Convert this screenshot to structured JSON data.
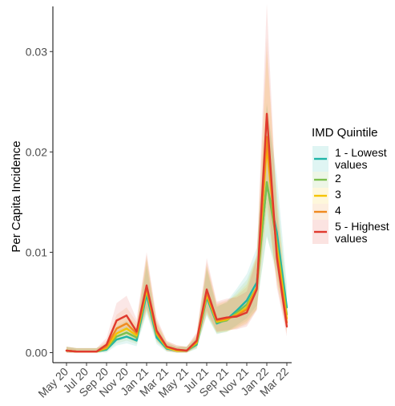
{
  "chart_data": {
    "type": "line",
    "ylabel": "Per Capita Incidence",
    "xlabel": "",
    "ylim": [
      -0.001,
      0.0345
    ],
    "y_ticks": [
      "0.00",
      "0.01",
      "0.02",
      "0.03"
    ],
    "x_ticks": [
      "May 20",
      "Jul 20",
      "Sep 20",
      "Nov 20",
      "Jan 21",
      "Mar 21",
      "May 21",
      "Jul 21",
      "Sep 21",
      "Nov 21",
      "Jan 22",
      "Mar 22"
    ],
    "x_range_months": [
      "2020-05",
      "2022-03"
    ],
    "grid": false,
    "legend": {
      "title": "IMD Quintile",
      "placement": "right"
    },
    "x": [
      "2020-05",
      "2020-06",
      "2020-07",
      "2020-08",
      "2020-09",
      "2020-10",
      "2020-11",
      "2020-12",
      "2021-01",
      "2021-02",
      "2021-03",
      "2021-04",
      "2021-05",
      "2021-06",
      "2021-07",
      "2021-08",
      "2021-09",
      "2021-10",
      "2021-11",
      "2021-12",
      "2022-01",
      "2022-02",
      "2022-03"
    ],
    "series": [
      {
        "name": "1 - Lowest values",
        "color": "#1fb5a8",
        "values": [
          0.0002,
          0.0001,
          0.0001,
          0.0001,
          0.0003,
          0.0013,
          0.0016,
          0.0012,
          0.0058,
          0.0015,
          0.0004,
          0.0002,
          0.0002,
          0.0008,
          0.0055,
          0.0029,
          0.0033,
          0.0042,
          0.0052,
          0.007,
          0.0168,
          0.012,
          0.0045
        ]
      },
      {
        "name": "2",
        "color": "#7cc04e",
        "values": [
          0.0002,
          0.0001,
          0.0001,
          0.0001,
          0.0004,
          0.0016,
          0.002,
          0.0015,
          0.0062,
          0.0018,
          0.0005,
          0.0002,
          0.0002,
          0.0009,
          0.0057,
          0.003,
          0.0032,
          0.004,
          0.0048,
          0.0065,
          0.017,
          0.011,
          0.0038
        ]
      },
      {
        "name": "3",
        "color": "#f5c400",
        "values": [
          0.0002,
          0.0001,
          0.0001,
          0.0001,
          0.0005,
          0.0019,
          0.0024,
          0.0017,
          0.0063,
          0.0019,
          0.0005,
          0.0002,
          0.0002,
          0.001,
          0.0058,
          0.0031,
          0.0033,
          0.0038,
          0.0045,
          0.0065,
          0.0205,
          0.0105,
          0.0034
        ]
      },
      {
        "name": "4",
        "color": "#f08a1f",
        "values": [
          0.0002,
          0.0001,
          0.0001,
          0.0001,
          0.0006,
          0.0024,
          0.0029,
          0.0019,
          0.0065,
          0.002,
          0.0006,
          0.0003,
          0.0002,
          0.0011,
          0.006,
          0.0032,
          0.0034,
          0.0037,
          0.0043,
          0.0064,
          0.0215,
          0.01,
          0.003
        ]
      },
      {
        "name": "5 - Highest values",
        "color": "#e03a2e",
        "values": [
          0.0002,
          0.0001,
          0.0001,
          0.0001,
          0.0008,
          0.0032,
          0.0037,
          0.0021,
          0.0067,
          0.0022,
          0.0006,
          0.0003,
          0.0002,
          0.0012,
          0.0063,
          0.0033,
          0.0035,
          0.0036,
          0.004,
          0.0063,
          0.0238,
          0.0095,
          0.0026
        ]
      }
    ]
  }
}
